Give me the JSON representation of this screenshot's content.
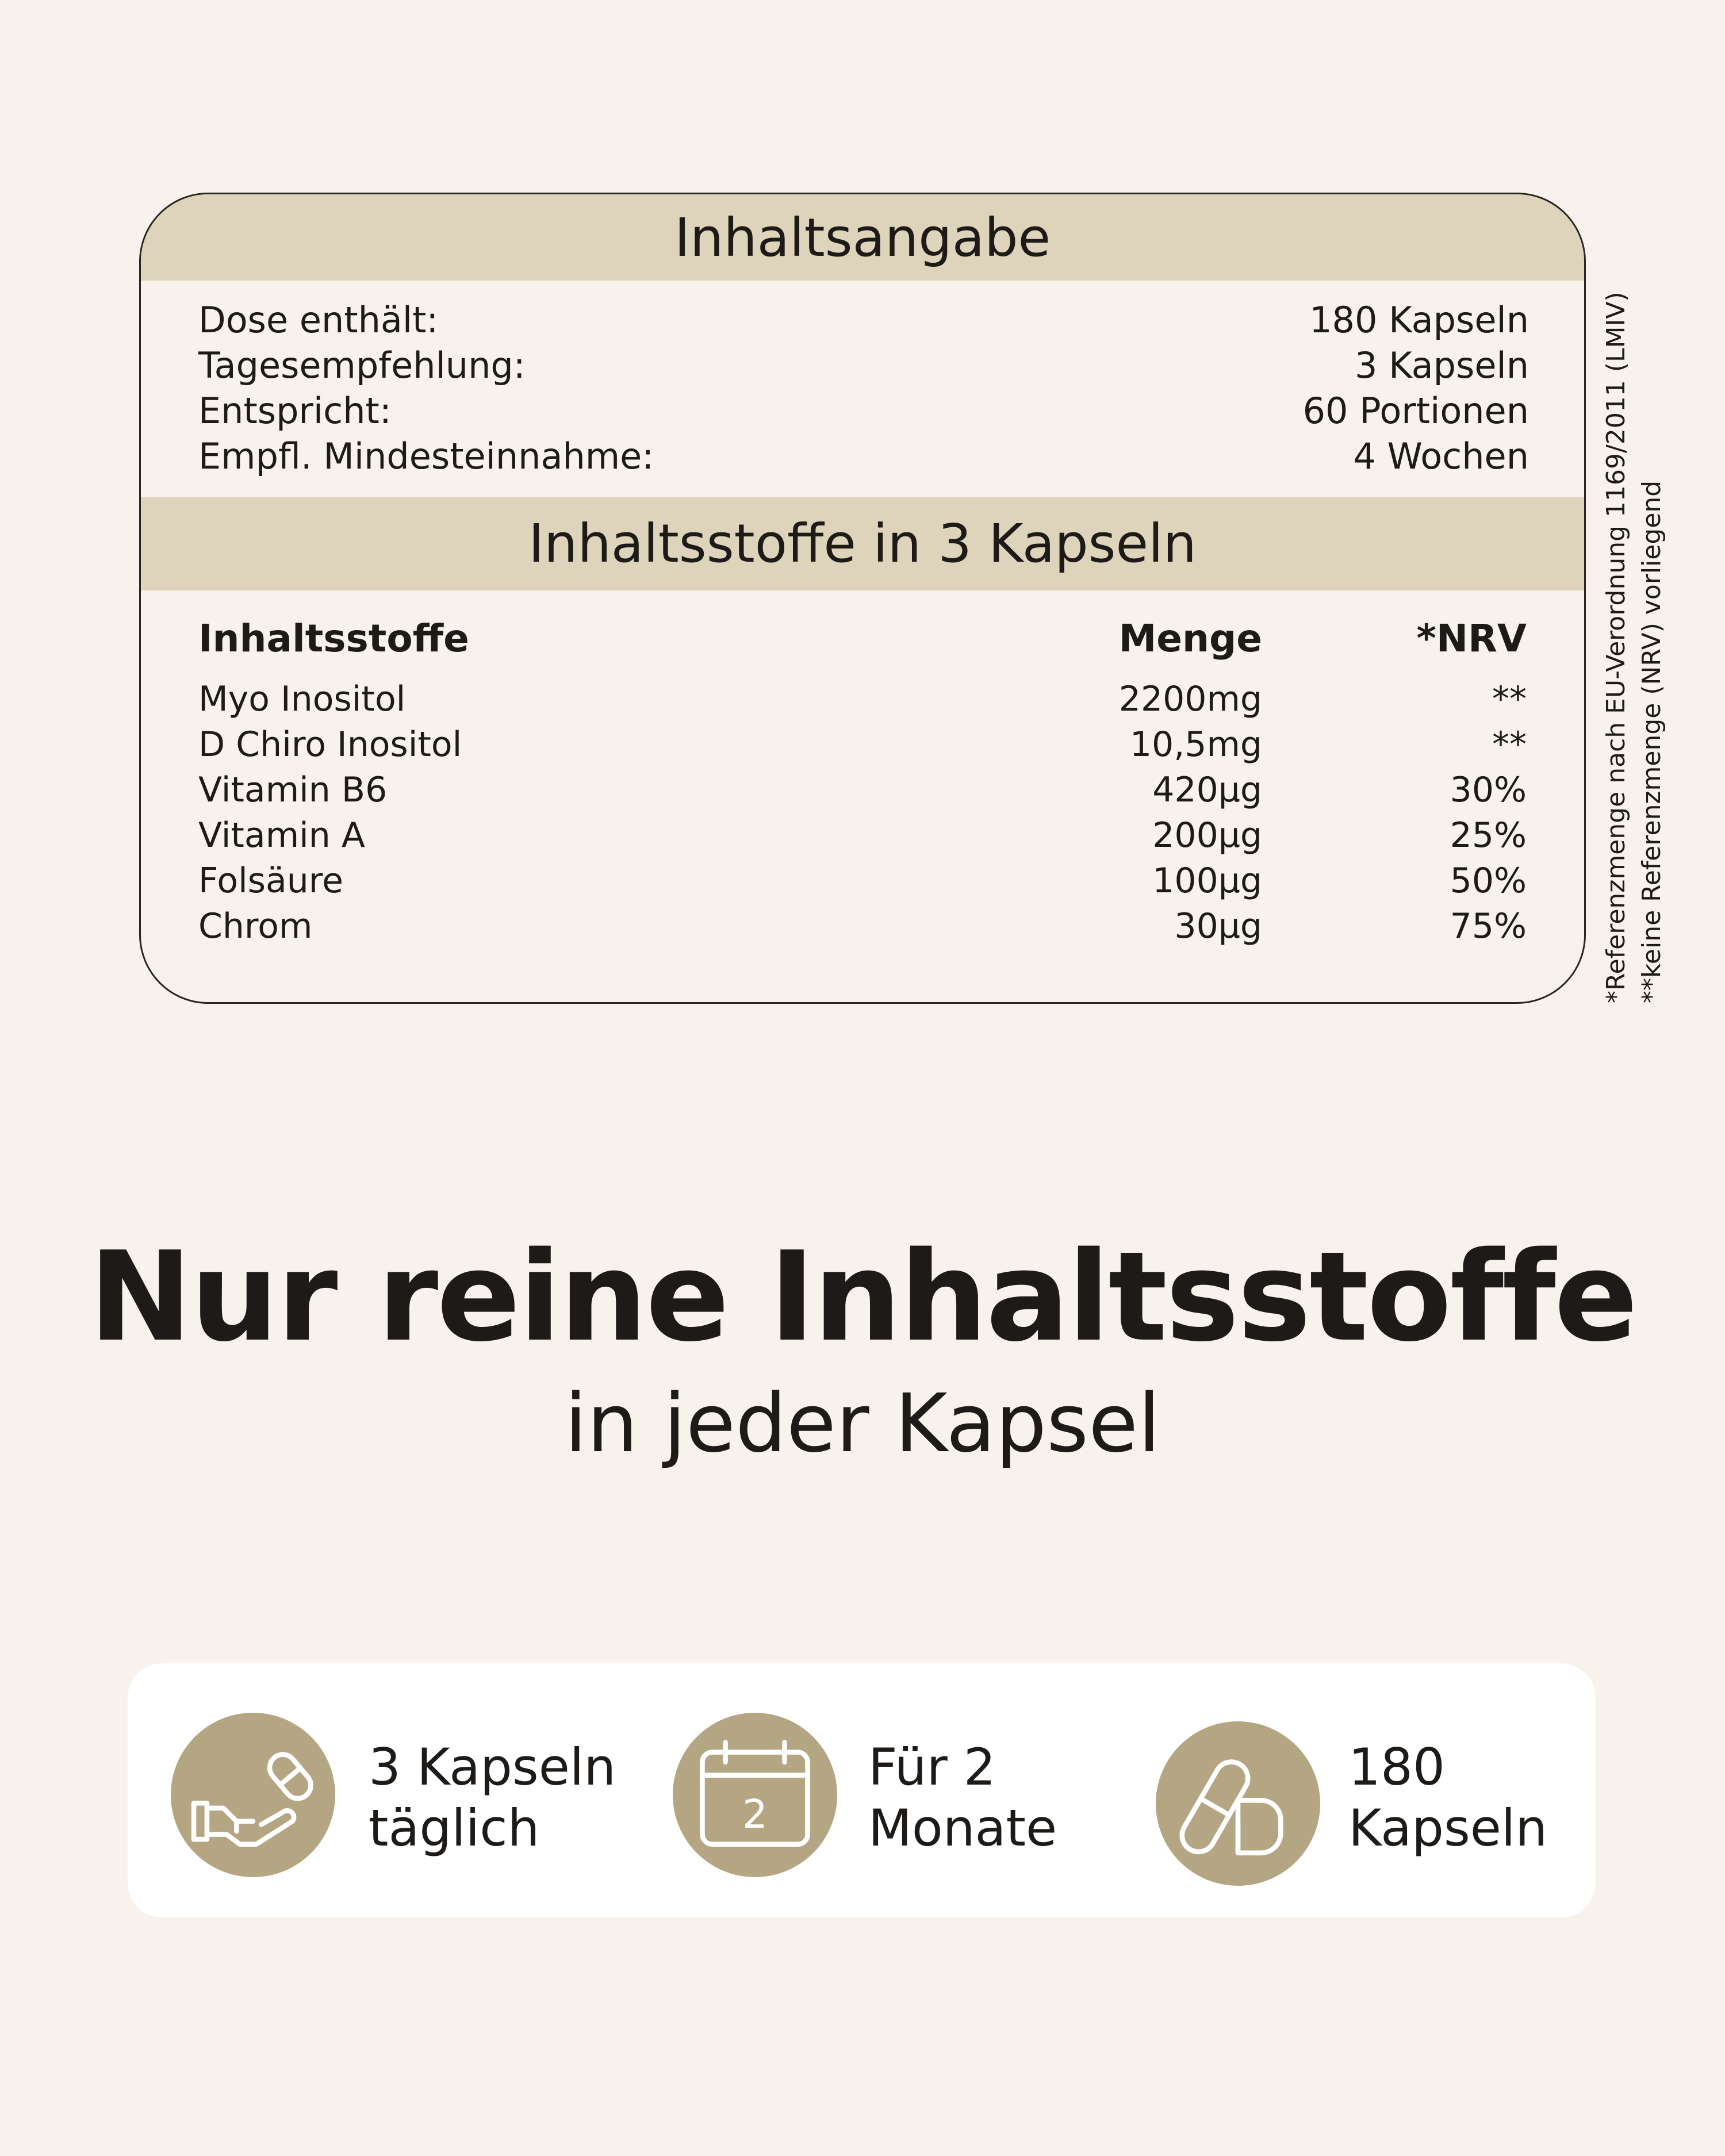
{
  "summary": {
    "title": "Inhaltsangabe",
    "rows": [
      {
        "label": "Dose enthält:",
        "value": "180 Kapseln"
      },
      {
        "label": "Tagesempfehlung:",
        "value": "3 Kapseln"
      },
      {
        "label": "Entspricht:",
        "value": "60 Portionen"
      },
      {
        "label": "Empfl. Mindesteinnahme:",
        "value": "4 Wochen"
      }
    ]
  },
  "ingredients": {
    "title": "Inhaltsstoffe in 3 Kapseln",
    "headers": [
      "Inhaltsstoffe",
      "Menge",
      "*NRV"
    ],
    "rows": [
      [
        "Myo Inositol",
        "2200mg",
        "**"
      ],
      [
        "D Chiro Inositol",
        "10,5mg",
        "**"
      ],
      [
        "Vitamin B6",
        "420µg",
        "30%"
      ],
      [
        "Vitamin A",
        "200µg",
        "25%"
      ],
      [
        "Folsäure",
        "100µg",
        "50%"
      ],
      [
        "Chrom",
        "30µg",
        "75%"
      ]
    ]
  },
  "footnotes": [
    "*Referenzmenge nach EU-Verordnung 1169/2011 (LMIV)",
    "**keine Referenzmenge (NRV) vorliegend"
  ],
  "headline": "Nur reine Inhaltsstoffe",
  "subheadline": "in jeder Kapsel",
  "features": [
    {
      "icon": "hand-capsule-icon",
      "line1": "3 Kapseln",
      "line2": "täglich"
    },
    {
      "icon": "calendar-icon",
      "calendar_number": "2",
      "line1": "Für 2",
      "line2": "Monate"
    },
    {
      "icon": "capsules-icon",
      "line1": "180",
      "line2": "Kapseln"
    }
  ],
  "colors": {
    "background": "#f7f3ec",
    "band": "#ded4bb",
    "icon_circle": "#b4a683",
    "text": "#1d1a17"
  }
}
